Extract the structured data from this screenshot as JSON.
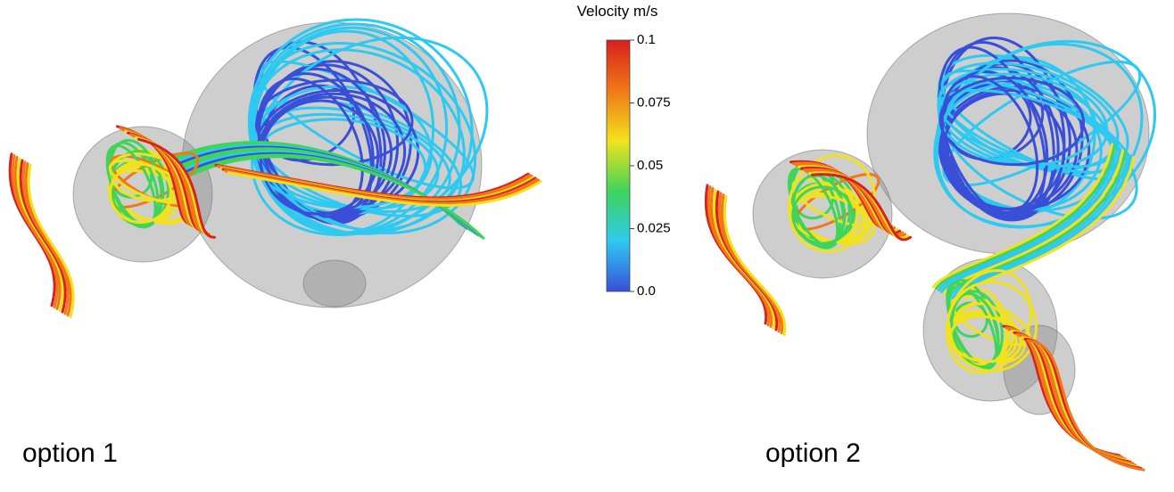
{
  "colorbar": {
    "title": "Velocity m/s",
    "range": [
      0,
      0.1
    ],
    "ticks": [
      {
        "value": 0,
        "label": "0.0"
      },
      0.025,
      0.05,
      0.075,
      0.1
    ],
    "colors": [
      "#3a4fd8",
      "#2ec9f0",
      "#3fd45a",
      "#f2e21c",
      "#f07818",
      "#d8201c"
    ]
  },
  "panels": [
    {
      "label": "option 1"
    },
    {
      "label": "option 2"
    }
  ]
}
